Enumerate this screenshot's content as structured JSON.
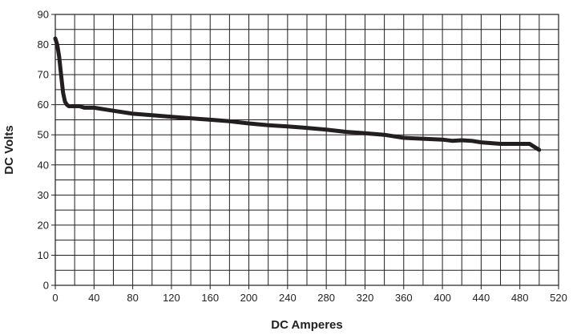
{
  "chart_data": {
    "type": "line",
    "title": "",
    "xlabel": "DC Amperes",
    "ylabel": "DC Volts",
    "xlim": [
      0,
      520
    ],
    "ylim": [
      0,
      90
    ],
    "xticks": [
      0,
      40,
      80,
      120,
      160,
      200,
      240,
      280,
      320,
      360,
      400,
      440,
      480,
      520
    ],
    "yticks": [
      0,
      10,
      20,
      30,
      40,
      50,
      60,
      70,
      80,
      90
    ],
    "x_minor_step": 20,
    "y_minor_step": 5,
    "grid": true,
    "legend": "none",
    "line_color": "#231f20",
    "series": [
      {
        "x": [
          0,
          2,
          4,
          6,
          8,
          10,
          12,
          14,
          16,
          20,
          25,
          30,
          40,
          50,
          60,
          80,
          100,
          120,
          140,
          160,
          180,
          200,
          220,
          240,
          260,
          280,
          300,
          320,
          340,
          360,
          380,
          400,
          410,
          420,
          430,
          440,
          460,
          470,
          480,
          490,
          500
        ],
        "y": [
          82,
          80,
          76,
          70,
          64,
          61,
          60,
          59.5,
          59.5,
          59.5,
          59.5,
          59,
          59,
          58.5,
          58,
          57,
          56.5,
          56,
          55.5,
          55,
          54.5,
          53.8,
          53.2,
          52.8,
          52.3,
          51.7,
          51,
          50.5,
          50,
          49,
          48.7,
          48.4,
          48,
          48.2,
          48,
          47.5,
          47,
          47,
          47,
          47,
          45
        ]
      }
    ]
  }
}
